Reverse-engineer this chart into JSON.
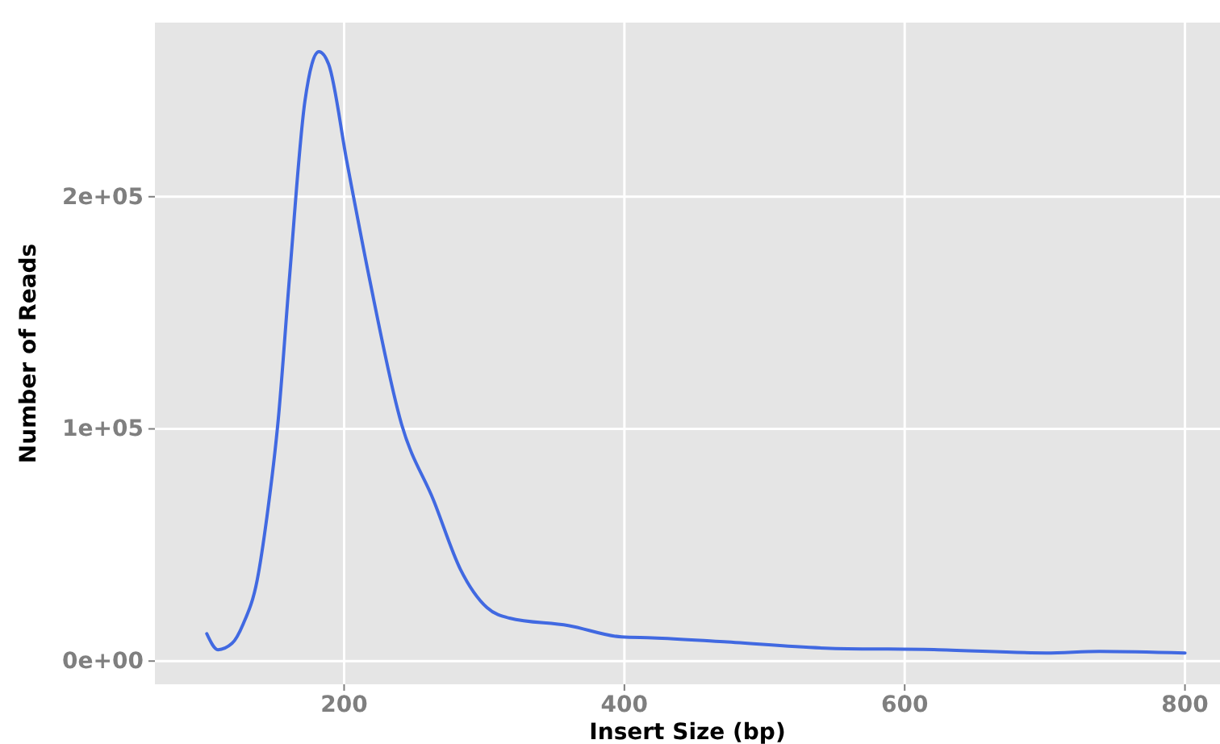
{
  "chart_data": {
    "type": "line",
    "xlabel": "Insert Size (bp)",
    "ylabel": "Number of Reads",
    "x": [
      102,
      110,
      120,
      128,
      138,
      145,
      153,
      161,
      172,
      182,
      189,
      202,
      218,
      241,
      264,
      283,
      302,
      318,
      360,
      398,
      420,
      471,
      547,
      624,
      701,
      739,
      800
    ],
    "series": [
      {
        "color": "#4169e1",
        "values": [
          11800,
          4900,
          7600,
          16000,
          35000,
          62500,
          104000,
          165000,
          241000,
          262500,
          257000,
          215000,
          165000,
          102000,
          69000,
          39500,
          23000,
          18500,
          15300,
          10400,
          10000,
          8300,
          5500,
          4900,
          3500,
          4200,
          3500
        ]
      }
    ],
    "xlim": [
      65,
      825
    ],
    "ylim": [
      -10000,
      275000
    ],
    "xticks": [
      200,
      400,
      600,
      800
    ],
    "yticks": [
      {
        "value": 0,
        "label": "0e+00"
      },
      {
        "value": 100000,
        "label": "1e+05"
      },
      {
        "value": 200000,
        "label": "2e+05"
      }
    ],
    "grid": true,
    "marker": "none",
    "line_style": "solid"
  }
}
